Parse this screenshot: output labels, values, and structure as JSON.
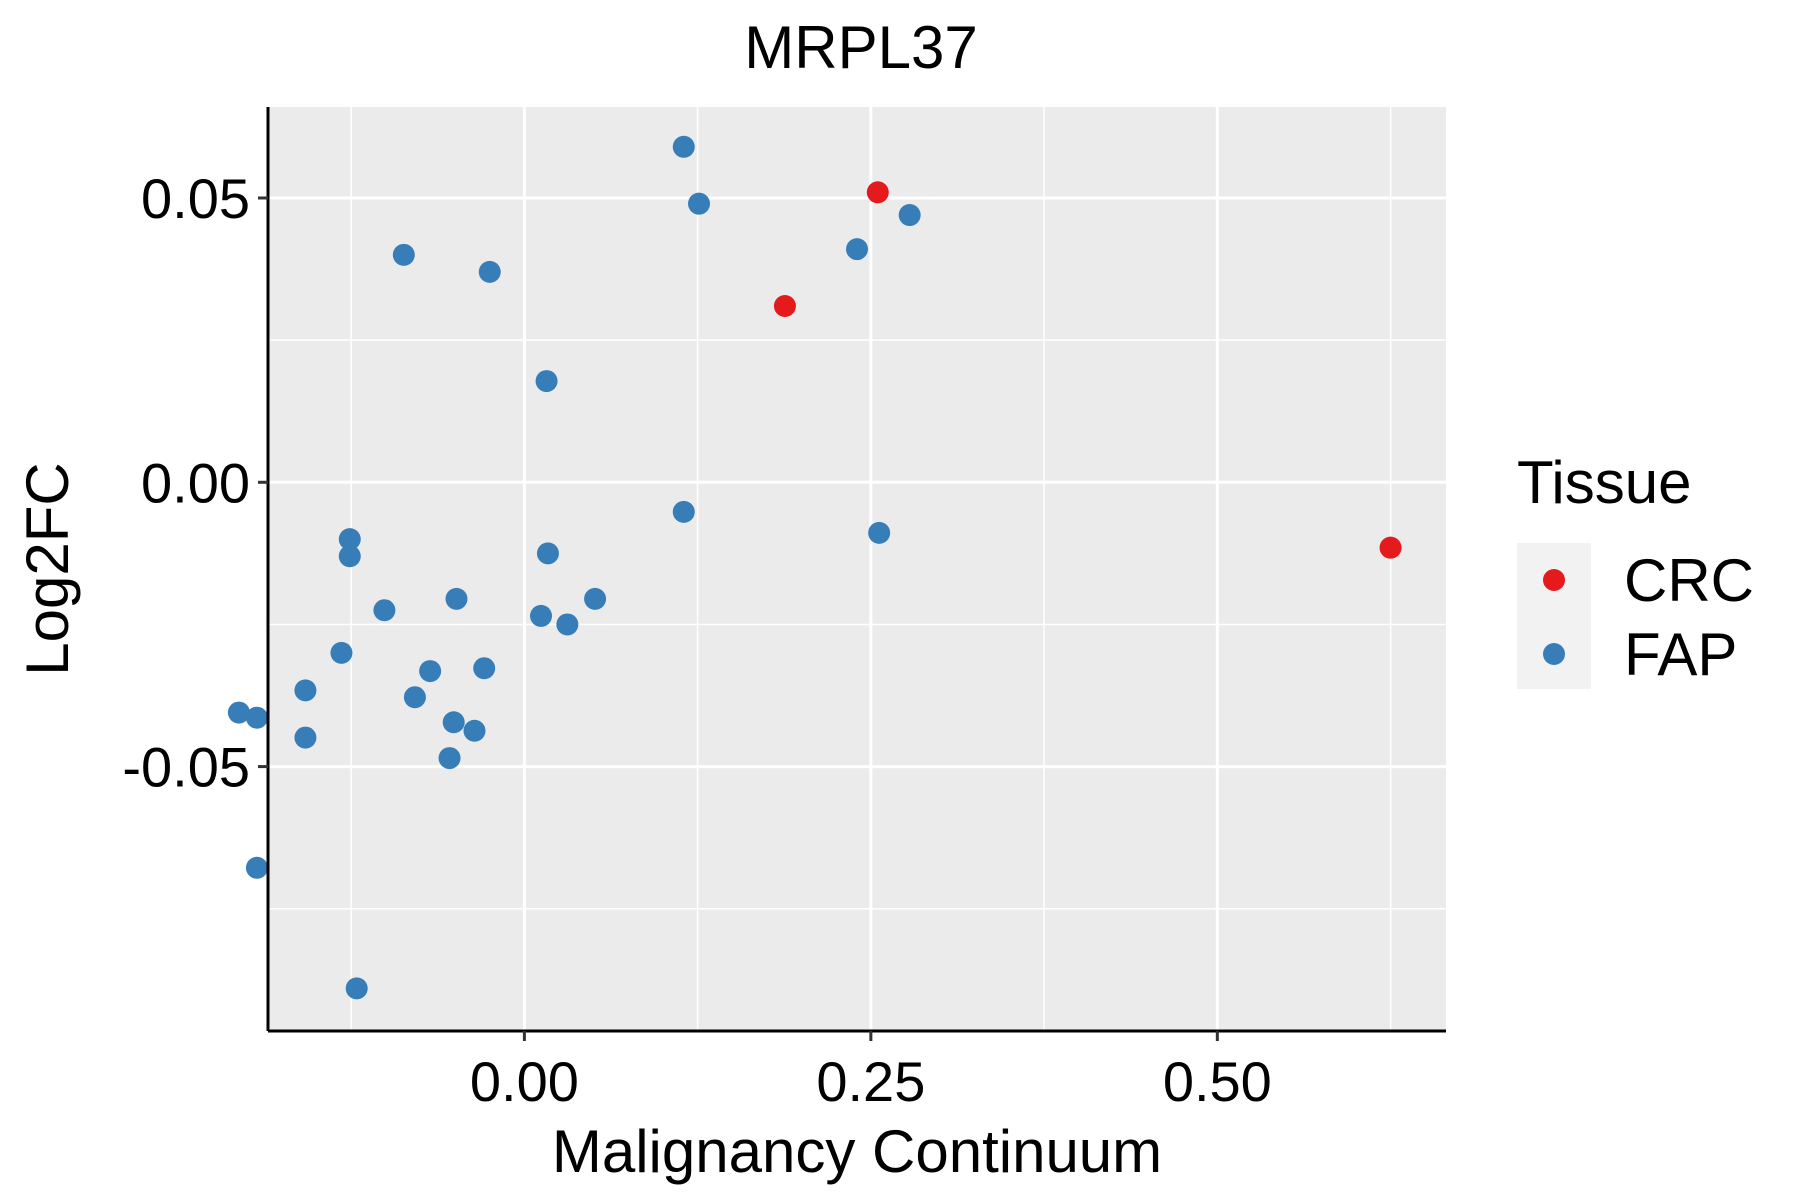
{
  "chart_data": {
    "type": "scatter",
    "title": "MRPL37",
    "xlabel": "Malignancy Continuum",
    "ylabel": "Log2FC",
    "xlim": [
      -0.185,
      0.665
    ],
    "ylim": [
      -0.0965,
      0.066
    ],
    "x_ticks": [
      0.0,
      0.25,
      0.5
    ],
    "x_tick_labels": [
      "0.00",
      "0.25",
      "0.50"
    ],
    "y_ticks": [
      -0.05,
      0.0,
      0.05
    ],
    "y_tick_labels": [
      "-0.05",
      "0.00",
      "0.05"
    ],
    "grid": true,
    "legend": {
      "title": "Tissue",
      "position": "right",
      "entries": [
        {
          "name": "CRC",
          "color": "#E41A1C"
        },
        {
          "name": "FAP",
          "color": "#377EB8"
        }
      ]
    },
    "series": [
      {
        "name": "CRC",
        "color": "#E41A1C",
        "points": [
          {
            "x": 0.255,
            "y": 0.051
          },
          {
            "x": 0.188,
            "y": 0.031
          },
          {
            "x": 0.625,
            "y": -0.0115
          }
        ]
      },
      {
        "name": "FAP",
        "color": "#377EB8",
        "points": [
          {
            "x": 0.115,
            "y": 0.059
          },
          {
            "x": 0.126,
            "y": 0.049
          },
          {
            "x": 0.278,
            "y": 0.047
          },
          {
            "x": 0.24,
            "y": 0.041
          },
          {
            "x": -0.087,
            "y": 0.04
          },
          {
            "x": -0.025,
            "y": 0.037
          },
          {
            "x": 0.016,
            "y": 0.0178
          },
          {
            "x": 0.115,
            "y": -0.0052
          },
          {
            "x": 0.256,
            "y": -0.0089
          },
          {
            "x": -0.126,
            "y": -0.01
          },
          {
            "x": -0.126,
            "y": -0.013
          },
          {
            "x": 0.017,
            "y": -0.0125
          },
          {
            "x": -0.049,
            "y": -0.0205
          },
          {
            "x": 0.051,
            "y": -0.0205
          },
          {
            "x": -0.101,
            "y": -0.0225
          },
          {
            "x": 0.012,
            "y": -0.0235
          },
          {
            "x": 0.031,
            "y": -0.025
          },
          {
            "x": -0.132,
            "y": -0.03
          },
          {
            "x": -0.068,
            "y": -0.0332
          },
          {
            "x": -0.029,
            "y": -0.0327
          },
          {
            "x": -0.158,
            "y": -0.0366
          },
          {
            "x": -0.079,
            "y": -0.0378
          },
          {
            "x": -0.206,
            "y": -0.0405
          },
          {
            "x": -0.193,
            "y": -0.0414
          },
          {
            "x": -0.051,
            "y": -0.0422
          },
          {
            "x": -0.036,
            "y": -0.0437
          },
          {
            "x": -0.158,
            "y": -0.0449
          },
          {
            "x": -0.054,
            "y": -0.0485
          },
          {
            "x": -0.193,
            "y": -0.0678
          },
          {
            "x": -0.121,
            "y": -0.089
          }
        ]
      }
    ]
  }
}
